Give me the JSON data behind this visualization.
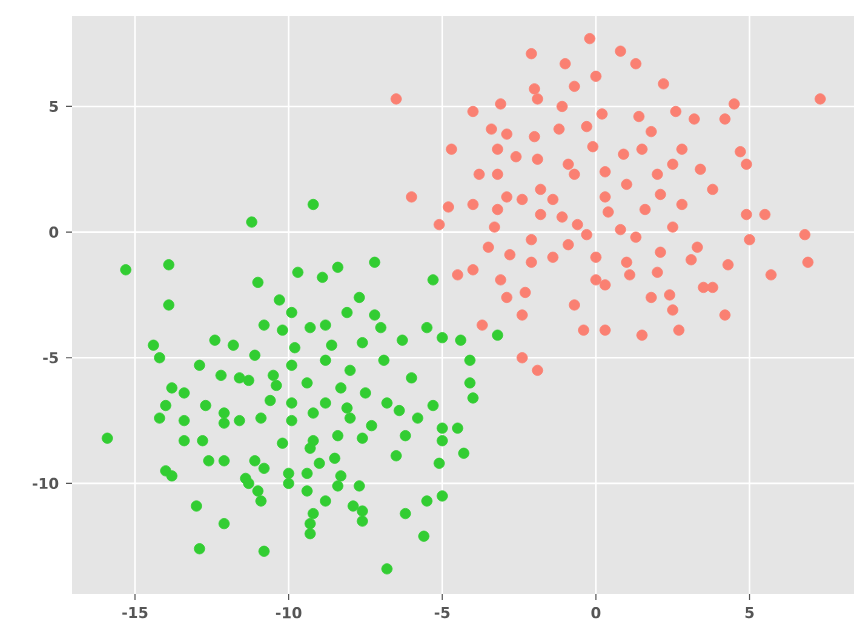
{
  "chart_data": {
    "type": "scatter",
    "marker": "circle",
    "grid": true,
    "xlim": [
      -17.05,
      8.4
    ],
    "ylim": [
      -14.4,
      8.6
    ],
    "xticks": [
      -15,
      -10,
      -5,
      0,
      5
    ],
    "yticks": [
      -10,
      -5,
      0,
      5
    ],
    "series": [
      {
        "color": "#fa8072",
        "x": [
          -6.5,
          7.3,
          -0.2,
          -2.1,
          0.8,
          -1.0,
          1.3,
          -0.7,
          0.0,
          -2.0,
          2.2,
          -4.0,
          -3.1,
          -1.9,
          -1.1,
          4.5,
          2.6,
          3.2,
          4.2,
          1.4,
          0.2,
          -3.4,
          -2.9,
          -1.2,
          -0.3,
          -2.0,
          1.8,
          -4.7,
          -3.2,
          -0.1,
          0.9,
          1.5,
          2.8,
          4.7,
          -2.6,
          -1.9,
          -0.9,
          2.5,
          4.9,
          -3.8,
          -3.2,
          -0.7,
          0.3,
          2.0,
          3.4,
          1.0,
          3.8,
          -1.8,
          -2.9,
          -2.4,
          -6.0,
          -4.0,
          -4.8,
          -1.4,
          0.3,
          2.1,
          2.8,
          -3.2,
          -1.8,
          -1.1,
          0.4,
          1.6,
          4.9,
          5.5,
          -5.1,
          -3.3,
          -0.6,
          0.8,
          2.5,
          6.8,
          5.0,
          -0.3,
          -3.5,
          -2.1,
          -0.9,
          1.3,
          2.1,
          3.3,
          -2.8,
          -1.4,
          0.0,
          1.0,
          3.1,
          4.3,
          6.9,
          -4.0,
          -2.1,
          2.0,
          1.1,
          -4.5,
          -3.1,
          0.0,
          5.7,
          -2.3,
          0.3,
          3.5,
          3.8,
          -2.9,
          -0.7,
          1.8,
          2.4,
          2.5,
          -2.4,
          4.2,
          -3.7,
          -0.4,
          0.3,
          1.5,
          2.7,
          -2.4,
          -1.9
        ],
        "values": [
          5.3,
          5.3,
          7.7,
          7.1,
          7.2,
          6.7,
          6.7,
          5.8,
          6.2,
          5.7,
          5.9,
          4.8,
          5.1,
          5.3,
          5.0,
          5.1,
          4.8,
          4.5,
          4.5,
          4.6,
          4.7,
          4.1,
          3.9,
          4.1,
          4.2,
          3.8,
          4.0,
          3.3,
          3.3,
          3.4,
          3.1,
          3.3,
          3.3,
          3.2,
          3.0,
          2.9,
          2.7,
          2.7,
          2.7,
          2.3,
          2.3,
          2.3,
          2.4,
          2.3,
          2.5,
          1.9,
          1.7,
          1.7,
          1.4,
          1.3,
          1.4,
          1.1,
          1.0,
          1.3,
          1.4,
          1.5,
          1.1,
          0.9,
          0.7,
          0.6,
          0.8,
          0.9,
          0.7,
          0.7,
          0.3,
          0.2,
          0.3,
          0.1,
          0.2,
          -0.1,
          -0.3,
          -0.1,
          -0.6,
          -0.3,
          -0.5,
          -0.2,
          -0.8,
          -0.6,
          -0.9,
          -1.0,
          -1.0,
          -1.2,
          -1.1,
          -1.3,
          -1.2,
          -1.5,
          -1.2,
          -1.6,
          -1.7,
          -1.7,
          -1.9,
          -1.9,
          -1.7,
          -2.4,
          -2.1,
          -2.2,
          -2.2,
          -2.6,
          -2.9,
          -2.6,
          -2.5,
          -3.1,
          -3.3,
          -3.3,
          -3.7,
          -3.9,
          -3.9,
          -4.1,
          -3.9,
          -5.0,
          -5.5
        ]
      },
      {
        "color": "#32cd32",
        "x": [
          -15.3,
          -13.9,
          -13.9,
          -11.2,
          -9.2,
          -11.0,
          -9.7,
          -8.9,
          -8.4,
          -7.2,
          -5.3,
          -3.2,
          -10.3,
          -7.7,
          -8.1,
          -7.2,
          -10.8,
          -9.9,
          -9.3,
          -8.8,
          -7.0,
          -5.5,
          -14.4,
          -14.2,
          -12.4,
          -11.8,
          -11.1,
          -10.2,
          -9.8,
          -8.6,
          -7.6,
          -6.3,
          -5.0,
          -4.4,
          -12.9,
          -12.2,
          -11.6,
          -10.5,
          -9.9,
          -8.8,
          -8.0,
          -6.9,
          -6.0,
          -4.1,
          -13.8,
          -13.4,
          -11.3,
          -10.4,
          -9.4,
          -8.3,
          -7.5,
          -4.1,
          -4.0,
          -14.0,
          -12.7,
          -12.1,
          -10.6,
          -9.9,
          -8.8,
          -8.1,
          -6.8,
          -6.4,
          -5.3,
          -14.2,
          -13.4,
          -12.1,
          -11.6,
          -10.9,
          -9.9,
          -9.2,
          -8.0,
          -7.3,
          -5.8,
          -5.0,
          -4.5,
          -15.9,
          -13.4,
          -12.8,
          -10.2,
          -9.2,
          -8.4,
          -7.6,
          -6.5,
          -6.2,
          -5.0,
          -4.3,
          -12.6,
          -12.1,
          -11.1,
          -10.8,
          -9.3,
          -9.0,
          -8.5,
          -5.1,
          -14.0,
          -13.8,
          -11.4,
          -10.0,
          -9.4,
          -8.3,
          -7.7,
          -11.3,
          -10.0,
          -11.0,
          -9.4,
          -8.8,
          -10.9,
          -8.4,
          -5.5,
          -5.0,
          -13.0,
          -7.9,
          -7.6,
          -9.2,
          -9.3,
          -6.2,
          -12.1,
          -7.6,
          -9.3,
          -5.6,
          -12.9,
          -10.8,
          -6.8
        ],
        "values": [
          -1.5,
          -1.3,
          -2.9,
          0.4,
          1.1,
          -2.0,
          -1.6,
          -1.8,
          -1.4,
          -1.2,
          -1.9,
          -4.1,
          -2.7,
          -2.6,
          -3.2,
          -3.3,
          -3.7,
          -3.2,
          -3.8,
          -3.7,
          -3.8,
          -3.8,
          -4.5,
          -5.0,
          -4.3,
          -4.5,
          -4.9,
          -3.9,
          -4.6,
          -4.5,
          -4.4,
          -4.3,
          -4.2,
          -4.3,
          -5.3,
          -5.7,
          -5.8,
          -5.7,
          -5.3,
          -5.1,
          -5.5,
          -5.1,
          -5.8,
          -5.1,
          -6.2,
          -6.4,
          -5.9,
          -6.1,
          -6.0,
          -6.2,
          -6.4,
          -6.0,
          -6.6,
          -6.9,
          -6.9,
          -7.2,
          -6.7,
          -6.8,
          -6.8,
          -7.0,
          -6.8,
          -7.1,
          -6.9,
          -7.4,
          -7.5,
          -7.6,
          -7.5,
          -7.4,
          -7.5,
          -7.2,
          -7.4,
          -7.7,
          -7.4,
          -7.8,
          -7.8,
          -8.2,
          -8.3,
          -8.3,
          -8.4,
          -8.3,
          -8.1,
          -8.2,
          -8.9,
          -8.1,
          -8.3,
          -8.8,
          -9.1,
          -9.1,
          -9.1,
          -9.4,
          -8.6,
          -9.2,
          -9.0,
          -9.2,
          -9.5,
          -9.7,
          -9.8,
          -9.6,
          -9.6,
          -9.7,
          -10.1,
          -10.0,
          -10.0,
          -10.3,
          -10.3,
          -10.7,
          -10.7,
          -10.1,
          -10.7,
          -10.5,
          -10.9,
          -10.9,
          -11.1,
          -11.2,
          -11.6,
          -11.2,
          -11.6,
          -11.5,
          -12.0,
          -12.1,
          -12.6,
          -12.7,
          -13.4
        ]
      }
    ]
  }
}
